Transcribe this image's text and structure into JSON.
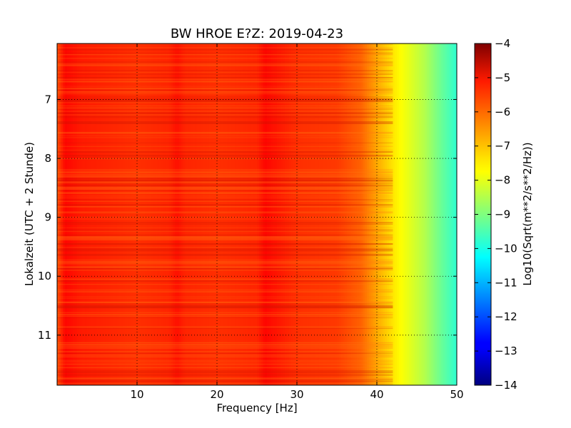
{
  "chart_data": {
    "type": "heatmap",
    "title": "BW HROE E?Z: 2019-04-23",
    "xlabel": "Frequency [Hz]",
    "ylabel": "Lokalzeit (UTC + 2 Stunde)",
    "colorbar_label": "Log10(Sqrt(m**2/s**2/Hz))",
    "xlim": [
      0,
      50
    ],
    "ylim_hours": [
      6.05,
      11.85
    ],
    "y_inverted": true,
    "x_ticks": [
      10,
      20,
      30,
      40,
      50
    ],
    "x_tick_labels": [
      "10",
      "20",
      "30",
      "40",
      "50"
    ],
    "y_ticks": [
      7,
      8,
      9,
      10,
      11
    ],
    "y_tick_labels": [
      "7",
      "8",
      "9",
      "10",
      "11"
    ],
    "colorbar_range": [
      -14,
      -4
    ],
    "colorbar_ticks": [
      -4,
      -5,
      -6,
      -7,
      -8,
      -9,
      -10,
      -11,
      -12,
      -13,
      -14
    ],
    "colorbar_tick_labels": [
      "−4",
      "−5",
      "−6",
      "−7",
      "−8",
      "−9",
      "−10",
      "−11",
      "−12",
      "−13",
      "−14"
    ],
    "colormap": "jet",
    "grid": true,
    "grid_style": "dotted",
    "spectrum_profile": {
      "frequency_hz": [
        0,
        1,
        3,
        10,
        14,
        15,
        16,
        20,
        25,
        26,
        30,
        35,
        38,
        40,
        42,
        44,
        46,
        48,
        50
      ],
      "log10_amplitude": [
        -6.0,
        -5.3,
        -5.5,
        -5.7,
        -5.6,
        -5.4,
        -5.6,
        -5.7,
        -5.6,
        -5.3,
        -5.7,
        -5.8,
        -6.2,
        -6.9,
        -7.5,
        -8.0,
        -8.5,
        -9.2,
        -9.8
      ]
    }
  }
}
